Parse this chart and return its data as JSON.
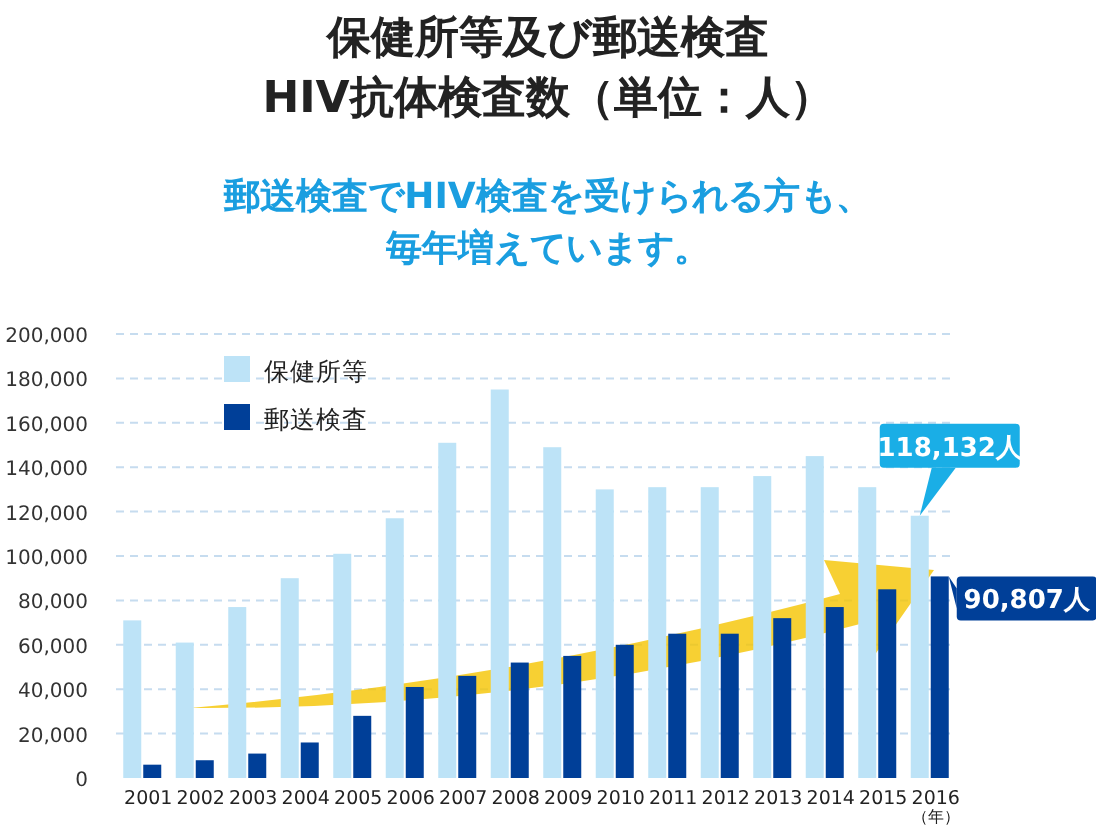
{
  "chart_data": {
    "type": "bar",
    "title": "保健所等及び郵送検査\nHIV抗体検査数（単位：人）",
    "subtitle": "郵送検査でHIV検査を受けられる方も、毎年増えています。",
    "xlabel": "（年）",
    "categories": [
      "2001",
      "2002",
      "2003",
      "2004",
      "2005",
      "2006",
      "2007",
      "2008",
      "2009",
      "2010",
      "2011",
      "2012",
      "2013",
      "2014",
      "2015",
      "2016"
    ],
    "series": [
      {
        "name": "保健所等",
        "color": "#bde3f7",
        "values": [
          71000,
          61000,
          77000,
          90000,
          101000,
          117000,
          151000,
          175000,
          149000,
          130000,
          131000,
          131000,
          136000,
          145000,
          131000,
          118132
        ],
        "value_labels": [
          null,
          null,
          null,
          null,
          null,
          null,
          null,
          null,
          null,
          null,
          null,
          null,
          null,
          null,
          null,
          "118,132人"
        ]
      },
      {
        "name": "郵送検査",
        "color": "#003f98",
        "values": [
          6000,
          8000,
          11000,
          16000,
          28000,
          41000,
          46000,
          52000,
          55000,
          60000,
          65000,
          65000,
          72000,
          77000,
          85000,
          90807
        ],
        "value_labels": [
          null,
          null,
          null,
          null,
          null,
          null,
          null,
          null,
          null,
          null,
          null,
          null,
          null,
          null,
          null,
          "90,807人"
        ]
      }
    ],
    "ylim": [
      0,
      200000
    ],
    "yticks": [
      0,
      {
        "value": 20000,
        "label": "20,000"
      },
      {
        "value": 40000,
        "label": "40,000"
      },
      {
        "value": 60000,
        "label": "60,000"
      },
      {
        "value": 80000,
        "label": "80,000"
      },
      {
        "value": 100000,
        "label": "100,000"
      },
      {
        "value": 120000,
        "label": "120,000"
      },
      {
        "value": 140000,
        "label": "140,000"
      },
      {
        "value": 160000,
        "label": "160,000"
      },
      {
        "value": 180000,
        "label": "180,000"
      },
      {
        "value": 200000,
        "label": "200,000"
      }
    ],
    "grid": "y",
    "legend": "top left"
  }
}
